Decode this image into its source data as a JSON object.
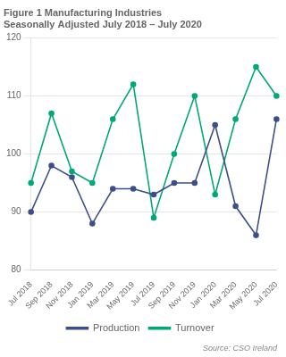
{
  "chart_data": {
    "type": "line",
    "title": "Figure 1 Manufacturing Industries\nSeasonally Adjusted July 2018 – July 2020",
    "annotations": [
      "Source: CSO Ireland"
    ],
    "categories": [
      "Jul 2018",
      "Sep 2018",
      "Nov 2018",
      "Jan 2019",
      "Mar 2019",
      "May 2019",
      "Jul 2019",
      "Sep 2019",
      "Nov 2019",
      "Jan 2020",
      "Mar 2020",
      "May 2020",
      "Jul 2020"
    ],
    "series": [
      {
        "name": "Production",
        "color": "#3c4f8a",
        "marker": "circle",
        "line_style": "solid",
        "values": [
          90,
          98,
          96,
          88,
          94,
          94,
          93,
          95,
          95,
          105,
          91,
          86,
          106
        ]
      },
      {
        "name": "Turnover",
        "color": "#00a878",
        "marker": "circle",
        "line_style": "solid",
        "values": [
          95,
          107,
          97,
          95,
          106,
          112,
          89,
          100,
          110,
          93,
          106,
          115,
          110
        ]
      }
    ],
    "ylim": [
      80,
      120
    ],
    "yticks": [
      80,
      90,
      100,
      110,
      120
    ],
    "grid": true,
    "legend": "bottom"
  }
}
